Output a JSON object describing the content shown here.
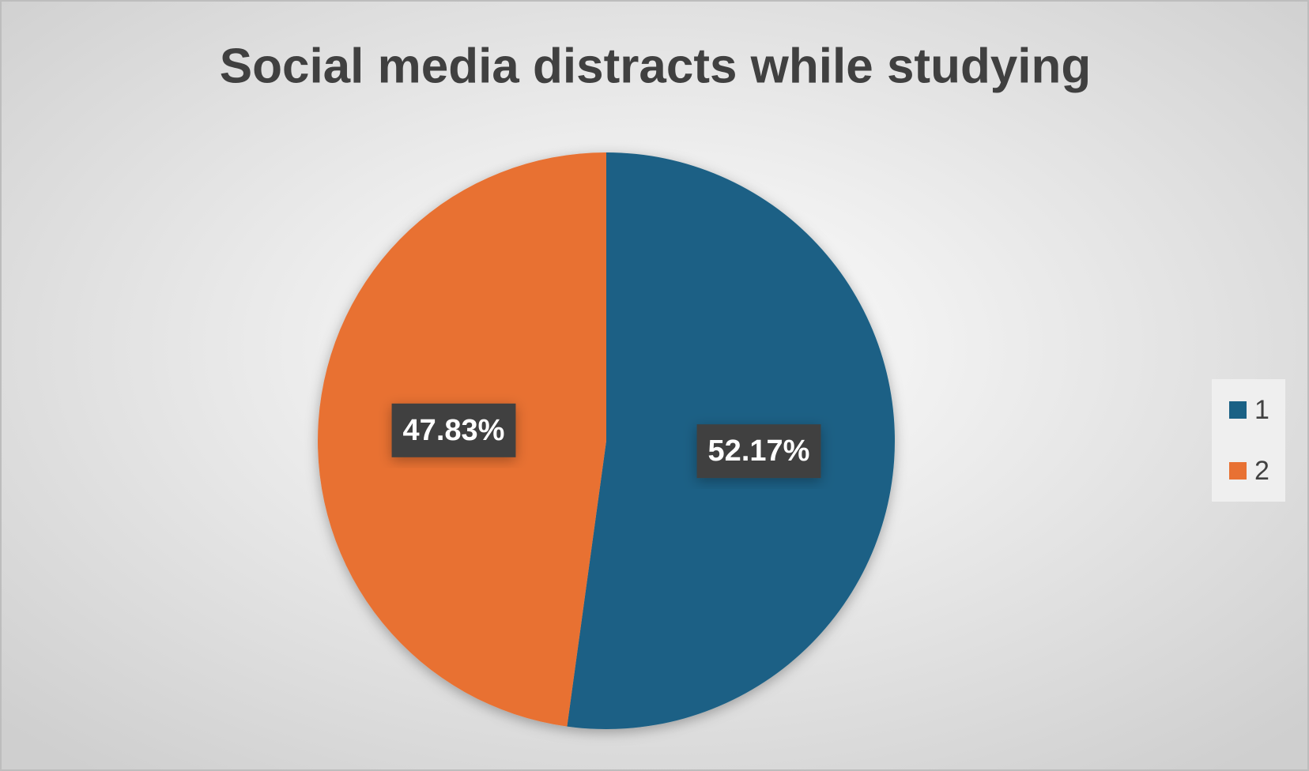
{
  "chart_data": {
    "type": "pie",
    "title": "Social media distracts while studying",
    "categories": [
      "1",
      "2"
    ],
    "values": [
      52.17,
      47.83
    ],
    "value_labels": [
      "52.17%",
      "47.83%"
    ],
    "colors": [
      "#1a6185",
      "#e87133"
    ],
    "legend": "right"
  }
}
